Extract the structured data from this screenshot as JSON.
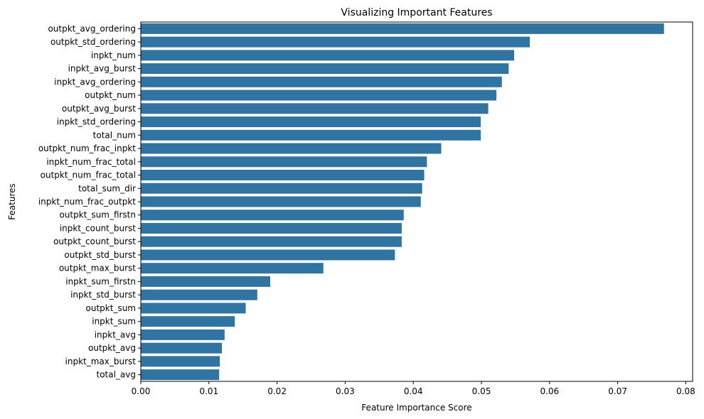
{
  "chart_data": {
    "type": "bar",
    "orientation": "horizontal",
    "title": "Visualizing Important Features",
    "xlabel": "Feature Importance Score",
    "ylabel": "Features",
    "xlim": [
      0,
      0.081
    ],
    "xticks": [
      "0.00",
      "0.01",
      "0.02",
      "0.03",
      "0.04",
      "0.05",
      "0.06",
      "0.07",
      "0.08"
    ],
    "grid": false,
    "bar_color": "#3274a1",
    "categories": [
      "outpkt_avg_ordering",
      "outpkt_std_ordering",
      "inpkt_num",
      "inpkt_avg_burst",
      "inpkt_avg_ordering",
      "outpkt_num",
      "outpkt_avg_burst",
      "inpkt_std_ordering",
      "total_num",
      "outpkt_num_frac_inpkt",
      "inpkt_num_frac_total",
      "outpkt_num_frac_total",
      "total_sum_dir",
      "inpkt_num_frac_outpkt",
      "outpkt_sum_firstn",
      "inpkt_count_burst",
      "outpkt_count_burst",
      "outpkt_std_burst",
      "outpkt_max_burst",
      "inpkt_sum_firstn",
      "inpkt_std_burst",
      "outpkt_sum",
      "inpkt_sum",
      "inpkt_avg",
      "outpkt_avg",
      "inpkt_max_burst",
      "total_avg"
    ],
    "values": [
      0.0768,
      0.0571,
      0.0548,
      0.054,
      0.053,
      0.0522,
      0.051,
      0.0499,
      0.0499,
      0.0441,
      0.042,
      0.0416,
      0.0413,
      0.0411,
      0.0386,
      0.0383,
      0.0383,
      0.0373,
      0.0268,
      0.019,
      0.0171,
      0.0154,
      0.0138,
      0.0123,
      0.0119,
      0.0116,
      0.0115
    ]
  }
}
